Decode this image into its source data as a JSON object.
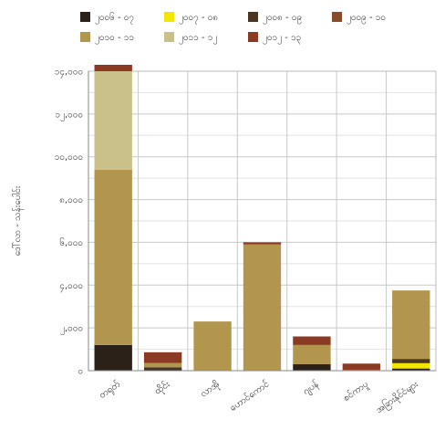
{
  "chart_data": {
    "type": "bar",
    "stacked": true,
    "categories": [
      "တရုတ်",
      "ထိုင်း",
      "လာအို",
      "ဟောင်ကောင်",
      "ဂျပန်",
      "စင်ကာပူ",
      "အခြားနိုင်ငံများ"
    ],
    "series": [
      {
        "name": "၂၀၀၆ - ၀၇",
        "color": "#2b2118",
        "values": [
          1200,
          80,
          0,
          0,
          300,
          0,
          100
        ]
      },
      {
        "name": "၂၀၀၇ - ၀၈",
        "color": "#f2e600",
        "values": [
          0,
          0,
          0,
          0,
          0,
          0,
          250
        ]
      },
      {
        "name": "၂၀၀၈ - ၀၉",
        "color": "#4a3622",
        "values": [
          0,
          80,
          0,
          0,
          0,
          0,
          200
        ]
      },
      {
        "name": "၂၀၀၉ - ၁၀",
        "color": "#8a4b2a",
        "values": [
          0,
          0,
          0,
          0,
          0,
          0,
          0
        ]
      },
      {
        "name": "၂၀၁၀ - ၁၁",
        "color": "#b2964e",
        "values": [
          8200,
          200,
          2300,
          5900,
          900,
          30,
          3200
        ]
      },
      {
        "name": "၂၀၁၁ - ၁၂",
        "color": "#c9c08a",
        "values": [
          4600,
          0,
          0,
          0,
          0,
          0,
          0
        ]
      },
      {
        "name": "၂၀၁၂ - ၁၃",
        "color": "#8b3a24",
        "values": [
          300,
          500,
          0,
          100,
          400,
          300,
          0
        ]
      }
    ],
    "ylabel": "ဒေါ်လာ - သန်းပေါင်း",
    "ylim": [
      0,
      14000
    ],
    "yticks": [
      0,
      2000,
      4000,
      6000,
      8000,
      10000,
      12000,
      14000
    ],
    "ytick_labels": [
      "၀",
      "၂,၀၀၀",
      "၄,၀၀၀",
      "၆,၀၀၀",
      "၈,၀၀၀",
      "၁၀,၀၀၀",
      "၁၂,၀၀၀",
      "၁၄,၀၀၀"
    ],
    "grid": true,
    "legend_position": "top"
  }
}
